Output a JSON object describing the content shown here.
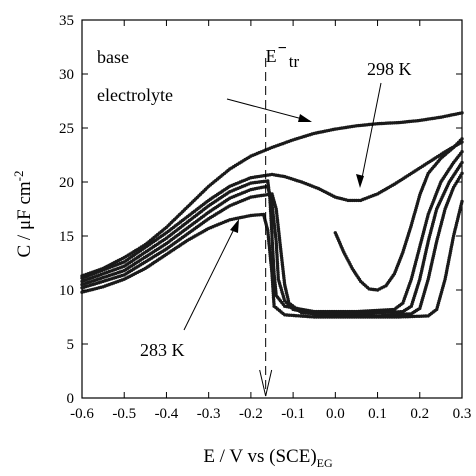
{
  "chart_data": {
    "type": "scatter",
    "title": "",
    "xlabel_main": "E / V vs (SCE)",
    "xlabel_sub": "EG",
    "ylabel": "C / μF cm",
    "ylabel_sup": "-2",
    "xlim": [
      -0.6,
      0.3
    ],
    "ylim": [
      0,
      35
    ],
    "xticks": [
      -0.6,
      -0.5,
      -0.4,
      -0.3,
      -0.2,
      -0.1,
      0.0,
      0.1,
      0.2,
      0.3
    ],
    "xtick_labels": [
      "-0.6",
      "-0.5",
      "-0.4",
      "-0.3",
      "-0.2",
      "-0.1",
      "0.0",
      "0.1",
      "0.2",
      "0.3"
    ],
    "yticks": [
      0,
      5,
      10,
      15,
      20,
      25,
      30,
      35
    ],
    "ytick_labels": [
      "0",
      "5",
      "10",
      "15",
      "20",
      "25",
      "30",
      "35"
    ],
    "grid": false,
    "marker_color": "#1a1a1a",
    "annotations": {
      "base_line1": "base",
      "base_line2": "electrolyte",
      "etr_main": "E",
      "etr_sup": "−",
      "etr_sub": "tr",
      "t_high": "298 K",
      "t_low": "283 K"
    },
    "etr_x": -0.165,
    "series": [
      {
        "key": "base",
        "points": [
          [
            -0.6,
            11.3
          ],
          [
            -0.55,
            12.0
          ],
          [
            -0.5,
            13.0
          ],
          [
            -0.45,
            14.2
          ],
          [
            -0.4,
            15.8
          ],
          [
            -0.35,
            17.7
          ],
          [
            -0.3,
            19.6
          ],
          [
            -0.25,
            21.2
          ],
          [
            -0.2,
            22.4
          ],
          [
            -0.15,
            23.2
          ],
          [
            -0.1,
            23.9
          ],
          [
            -0.05,
            24.5
          ],
          [
            0.0,
            24.9
          ],
          [
            0.05,
            25.2
          ],
          [
            0.1,
            25.4
          ],
          [
            0.15,
            25.5
          ],
          [
            0.2,
            25.7
          ],
          [
            0.25,
            26.0
          ],
          [
            0.3,
            26.4
          ]
        ]
      },
      {
        "key": "298 K",
        "points": [
          [
            -0.6,
            11.1
          ],
          [
            -0.5,
            12.6
          ],
          [
            -0.4,
            15.3
          ],
          [
            -0.3,
            18.3
          ],
          [
            -0.25,
            19.6
          ],
          [
            -0.2,
            20.4
          ],
          [
            -0.15,
            20.7
          ],
          [
            -0.12,
            20.5
          ],
          [
            -0.08,
            20.0
          ],
          [
            -0.04,
            19.4
          ],
          [
            0.0,
            18.6
          ],
          [
            0.03,
            18.3
          ],
          [
            0.06,
            18.3
          ],
          [
            0.1,
            18.9
          ],
          [
            0.14,
            19.8
          ],
          [
            0.18,
            20.8
          ],
          [
            0.22,
            21.8
          ],
          [
            0.26,
            22.8
          ],
          [
            0.3,
            23.7
          ]
        ]
      },
      {
        "key": "mid-1",
        "points": [
          [
            -0.6,
            10.8
          ],
          [
            -0.5,
            12.2
          ],
          [
            -0.4,
            14.8
          ],
          [
            -0.3,
            17.8
          ],
          [
            -0.25,
            19.1
          ],
          [
            -0.2,
            19.9
          ],
          [
            -0.16,
            20.1
          ],
          [
            -0.155,
            18.5
          ],
          [
            -0.15,
            15.0
          ],
          [
            -0.145,
            11.5
          ],
          [
            -0.14,
            9.5
          ],
          [
            -0.12,
            8.5
          ],
          [
            -0.05,
            8.0
          ],
          [
            0.05,
            8.0
          ],
          [
            0.14,
            8.2
          ],
          [
            0.16,
            8.8
          ],
          [
            0.18,
            11.0
          ],
          [
            0.2,
            14.0
          ],
          [
            0.22,
            17.0
          ],
          [
            0.25,
            20.0
          ],
          [
            0.28,
            21.8
          ],
          [
            0.3,
            22.8
          ]
        ]
      },
      {
        "key": "mid-2",
        "points": [
          [
            -0.6,
            10.5
          ],
          [
            -0.5,
            11.8
          ],
          [
            -0.4,
            14.3
          ],
          [
            -0.3,
            17.2
          ],
          [
            -0.25,
            18.5
          ],
          [
            -0.2,
            19.3
          ],
          [
            -0.16,
            19.6
          ],
          [
            -0.15,
            18.0
          ],
          [
            -0.14,
            14.5
          ],
          [
            -0.135,
            11.0
          ],
          [
            -0.12,
            9.0
          ],
          [
            -0.1,
            8.2
          ],
          [
            -0.05,
            7.8
          ],
          [
            0.05,
            7.8
          ],
          [
            0.16,
            8.0
          ],
          [
            0.18,
            8.5
          ],
          [
            0.2,
            11.0
          ],
          [
            0.22,
            14.5
          ],
          [
            0.24,
            17.5
          ],
          [
            0.27,
            20.0
          ],
          [
            0.3,
            21.8
          ]
        ]
      },
      {
        "key": "mid-3",
        "points": [
          [
            -0.6,
            10.2
          ],
          [
            -0.5,
            11.4
          ],
          [
            -0.4,
            13.8
          ],
          [
            -0.3,
            16.6
          ],
          [
            -0.25,
            17.8
          ],
          [
            -0.2,
            18.6
          ],
          [
            -0.15,
            18.9
          ],
          [
            -0.14,
            17.5
          ],
          [
            -0.13,
            14.0
          ],
          [
            -0.12,
            10.5
          ],
          [
            -0.11,
            8.8
          ],
          [
            -0.08,
            7.9
          ],
          [
            0.0,
            7.6
          ],
          [
            0.1,
            7.6
          ],
          [
            0.18,
            7.8
          ],
          [
            0.2,
            8.3
          ],
          [
            0.22,
            11.0
          ],
          [
            0.24,
            14.5
          ],
          [
            0.26,
            17.5
          ],
          [
            0.28,
            19.5
          ],
          [
            0.3,
            20.8
          ]
        ]
      },
      {
        "key": "283 K",
        "points": [
          [
            -0.6,
            9.8
          ],
          [
            -0.55,
            10.3
          ],
          [
            -0.5,
            11.0
          ],
          [
            -0.45,
            12.0
          ],
          [
            -0.4,
            13.3
          ],
          [
            -0.35,
            14.6
          ],
          [
            -0.3,
            15.7
          ],
          [
            -0.25,
            16.5
          ],
          [
            -0.2,
            16.9
          ],
          [
            -0.17,
            17.0
          ],
          [
            -0.16,
            15.5
          ],
          [
            -0.15,
            11.5
          ],
          [
            -0.145,
            8.5
          ],
          [
            -0.12,
            7.7
          ],
          [
            -0.05,
            7.5
          ],
          [
            0.05,
            7.5
          ],
          [
            0.15,
            7.5
          ],
          [
            0.22,
            7.6
          ],
          [
            0.24,
            8.2
          ],
          [
            0.26,
            11.0
          ],
          [
            0.28,
            15.0
          ],
          [
            0.3,
            18.2
          ]
        ]
      },
      {
        "key": "298-branch",
        "points": [
          [
            0.0,
            15.3
          ],
          [
            0.02,
            13.5
          ],
          [
            0.04,
            12.0
          ],
          [
            0.06,
            10.8
          ],
          [
            0.08,
            10.1
          ],
          [
            0.1,
            10.0
          ],
          [
            0.12,
            10.4
          ],
          [
            0.14,
            11.5
          ],
          [
            0.16,
            13.5
          ],
          [
            0.18,
            16.0
          ],
          [
            0.2,
            18.8
          ],
          [
            0.22,
            20.8
          ],
          [
            0.25,
            22.2
          ],
          [
            0.28,
            23.2
          ],
          [
            0.3,
            24.0
          ]
        ]
      }
    ]
  }
}
